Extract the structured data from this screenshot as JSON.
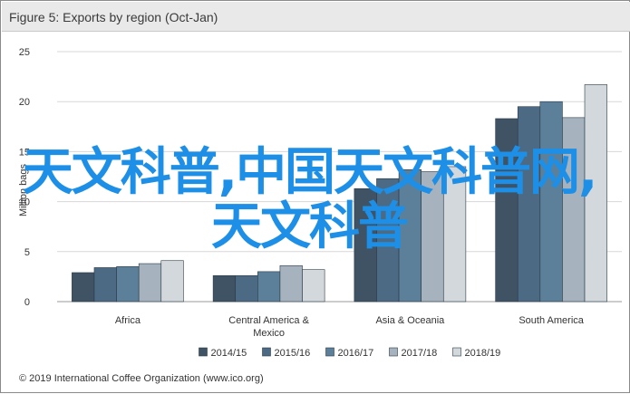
{
  "title": "Figure 5: Exports by region (Oct-Jan)",
  "credit": "© 2019 International Coffee Organization (www.ico.org)",
  "watermark": "天文科普,中国天文科普网,天文科普",
  "colors": {
    "series": [
      "#3f5364",
      "#4d6a84",
      "#5c8099",
      "#a6b3bf",
      "#d3d8dd"
    ],
    "grid": "#d7d7d7",
    "axis_text": "#333333"
  },
  "chart_data": {
    "type": "bar",
    "title": "Figure 5: Exports by region (Oct-Jan)",
    "xlabel": "",
    "ylabel": "Million bags",
    "ylim": [
      0,
      25
    ],
    "yticks": [
      0,
      5,
      10,
      15,
      20,
      25
    ],
    "grid": true,
    "legend_position": "bottom",
    "categories": [
      "Africa",
      "Central America & Mexico",
      "Asia & Oceania",
      "South America"
    ],
    "series": [
      {
        "name": "2014/15",
        "values": [
          2.9,
          2.6,
          11.3,
          18.3
        ]
      },
      {
        "name": "2015/16",
        "values": [
          3.4,
          2.6,
          12.3,
          19.5
        ]
      },
      {
        "name": "2016/17",
        "values": [
          3.5,
          3.0,
          13.2,
          20.0
        ]
      },
      {
        "name": "2017/18",
        "values": [
          3.8,
          3.6,
          13.0,
          18.4
        ]
      },
      {
        "name": "2018/19",
        "values": [
          4.1,
          3.2,
          13.5,
          21.7
        ]
      }
    ]
  }
}
